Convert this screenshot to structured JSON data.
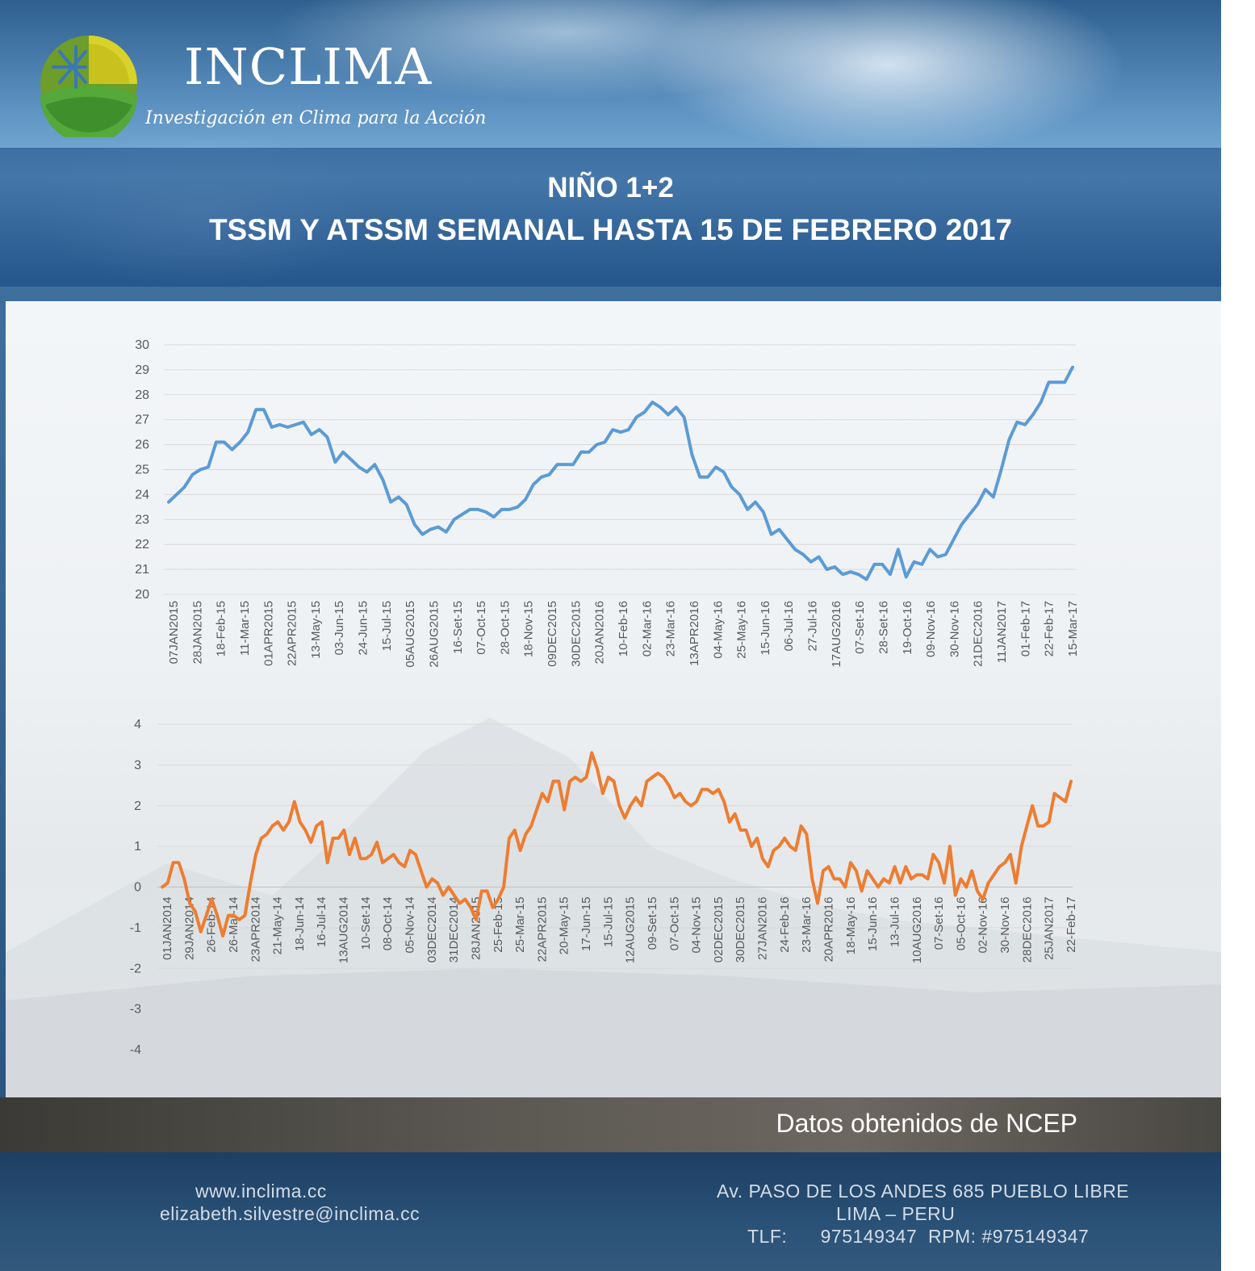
{
  "brand": {
    "name": "INCLIMA",
    "tagline": "Investigación en Clima para la Acción"
  },
  "title": {
    "line1": "NIÑO 1+2",
    "line2": "TSSM Y ATSSM SEMANAL HASTA 15 DE FEBRERO 2017"
  },
  "source_note": "Datos obtenidos de NCEP",
  "footer": {
    "website": "www.inclima.cc",
    "email": "elizabeth.silvestre@inclima.cc",
    "address": "Av. PASO DE LOS ANDES 685 PUEBLO LIBRE",
    "city": "LIMA – PERU",
    "phone": "TLF:      975149347  RPM: #975149347"
  },
  "colors": {
    "tssm_line": "#5b9bd5",
    "atssm_line": "#ed7d31",
    "gridline": "#d9d9d9"
  },
  "chart_data": [
    {
      "type": "line",
      "title": "",
      "xlabel": "",
      "ylabel": "",
      "ylim": [
        20,
        30
      ],
      "yticks": [
        20,
        21,
        22,
        23,
        24,
        25,
        26,
        27,
        28,
        29,
        30
      ],
      "grid": true,
      "x_tick_labels": [
        "07JAN2015",
        "28JAN2015",
        "18-Feb-15",
        "11-Mar-15",
        "01APR2015",
        "22APR2015",
        "13-May-15",
        "03-Jun-15",
        "24-Jun-15",
        "15-Jul-15",
        "05AUG2015",
        "26AUG2015",
        "16-Set-15",
        "07-Oct-15",
        "28-Oct-15",
        "18-Nov-15",
        "09DEC2015",
        "30DEC2015",
        "20JAN2016",
        "10-Feb-16",
        "02-Mar-16",
        "23-Mar-16",
        "13APR2016",
        "04-May-16",
        "25-May-16",
        "15-Jun-16",
        "06-Jul-16",
        "27-Jul-16",
        "17AUG2016",
        "07-Set-16",
        "28-Set-16",
        "19-Oct-16",
        "09-Nov-16",
        "30-Nov-16",
        "21DEC2016",
        "11JAN2017",
        "01-Feb-17",
        "22-Feb-17",
        "15-Mar-17"
      ],
      "series": [
        {
          "values": [
            23.7,
            24.0,
            24.3,
            24.8,
            25.0,
            25.1,
            26.1,
            26.1,
            25.8,
            26.1,
            26.5,
            27.4,
            27.4,
            26.7,
            26.8,
            26.7,
            26.8,
            26.9,
            26.4,
            26.6,
            26.3,
            25.3,
            25.7,
            25.4,
            25.1,
            24.9,
            25.2,
            24.6,
            23.7,
            23.9,
            23.6,
            22.8,
            22.4,
            22.6,
            22.7,
            22.5,
            23.0,
            23.2,
            23.4,
            23.4,
            23.3,
            23.1,
            23.4,
            23.4,
            23.5,
            23.8,
            24.4,
            24.7,
            24.8,
            25.2,
            25.2,
            25.2,
            25.7,
            25.7,
            26.0,
            26.1,
            26.6,
            26.5,
            26.6,
            27.1,
            27.3,
            27.7,
            27.5,
            27.2,
            27.5,
            27.1,
            25.6,
            24.7,
            24.7,
            25.1,
            24.9,
            24.3,
            24.0,
            23.4,
            23.7,
            23.3,
            22.4,
            22.6,
            22.2,
            21.8,
            21.6,
            21.3,
            21.5,
            21.0,
            21.1,
            20.8,
            20.9,
            20.8,
            20.6,
            21.2,
            21.2,
            20.8,
            21.8,
            20.7,
            21.3,
            21.2,
            21.8,
            21.5,
            21.6,
            22.2,
            22.8,
            23.2,
            23.6,
            24.2,
            23.9,
            25.0,
            26.2,
            26.9,
            26.8,
            27.2,
            27.7,
            28.5,
            28.5,
            28.5,
            29.1
          ]
        }
      ]
    },
    {
      "type": "line",
      "title": "",
      "xlabel": "",
      "ylabel": "",
      "ylim": [
        -4,
        4
      ],
      "yticks": [
        -4,
        -3,
        -2,
        -1,
        0,
        1,
        2,
        3,
        4
      ],
      "grid": true,
      "x_tick_labels": [
        "01JAN2014",
        "29JAN2014",
        "26-Feb-14",
        "26-Mar-14",
        "23APR2014",
        "21-May-14",
        "18-Jun-14",
        "16-Jul-14",
        "13AUG2014",
        "10-Set-14",
        "08-Oct-14",
        "05-Nov-14",
        "03DEC2014",
        "31DEC2014",
        "28JAN2015",
        "25-Feb-15",
        "25-Mar-15",
        "22APR2015",
        "20-May-15",
        "17-Jun-15",
        "15-Jul-15",
        "12AUG2015",
        "09-Set-15",
        "07-Oct-15",
        "04-Nov-15",
        "02DEC2015",
        "30DEC2015",
        "27JAN2016",
        "24-Feb-16",
        "23-Mar-16",
        "20APR2016",
        "18-May-16",
        "15-Jun-16",
        "13-Jul-16",
        "10AUG2016",
        "07-Set-16",
        "05-Oct-16",
        "02-Nov-16",
        "30-Nov-16",
        "28DEC2016",
        "25JAN2017",
        "22-Feb-17"
      ],
      "series": [
        {
          "values": [
            0.0,
            0.1,
            0.6,
            0.6,
            0.2,
            -0.4,
            -0.6,
            -1.1,
            -0.7,
            -0.3,
            -0.7,
            -1.2,
            -0.7,
            -0.7,
            -0.8,
            -0.7,
            0.1,
            0.8,
            1.2,
            1.3,
            1.5,
            1.6,
            1.4,
            1.6,
            2.1,
            1.6,
            1.4,
            1.1,
            1.5,
            1.6,
            0.6,
            1.2,
            1.2,
            1.4,
            0.8,
            1.2,
            0.7,
            0.7,
            0.8,
            1.1,
            0.6,
            0.7,
            0.8,
            0.6,
            0.5,
            0.9,
            0.8,
            0.4,
            0.0,
            0.2,
            0.1,
            -0.2,
            0.0,
            -0.2,
            -0.4,
            -0.3,
            -0.5,
            -0.8,
            -0.1,
            -0.1,
            -0.5,
            -0.3,
            0.0,
            1.2,
            1.4,
            0.9,
            1.3,
            1.5,
            1.9,
            2.3,
            2.1,
            2.6,
            2.6,
            1.9,
            2.6,
            2.7,
            2.6,
            2.7,
            3.3,
            2.9,
            2.3,
            2.7,
            2.6,
            2.0,
            1.7,
            2.0,
            2.2,
            2.0,
            2.6,
            2.7,
            2.8,
            2.7,
            2.5,
            2.2,
            2.3,
            2.1,
            2.0,
            2.1,
            2.4,
            2.4,
            2.3,
            2.4,
            2.1,
            1.6,
            1.8,
            1.4,
            1.4,
            1.0,
            1.2,
            0.7,
            0.5,
            0.9,
            1.0,
            1.2,
            1.0,
            0.9,
            1.5,
            1.3,
            0.2,
            -0.4,
            0.4,
            0.5,
            0.2,
            0.2,
            0.0,
            0.6,
            0.4,
            -0.1,
            0.4,
            0.2,
            0.0,
            0.2,
            0.1,
            0.5,
            0.1,
            0.5,
            0.2,
            0.3,
            0.3,
            0.2,
            0.8,
            0.6,
            0.1,
            1.0,
            -0.2,
            0.2,
            0.0,
            0.4,
            -0.1,
            -0.3,
            0.1,
            0.3,
            0.5,
            0.6,
            0.8,
            0.1,
            1.0,
            1.5,
            2.0,
            1.5,
            1.5,
            1.6,
            2.3,
            2.2,
            2.1,
            2.6
          ]
        }
      ]
    }
  ]
}
